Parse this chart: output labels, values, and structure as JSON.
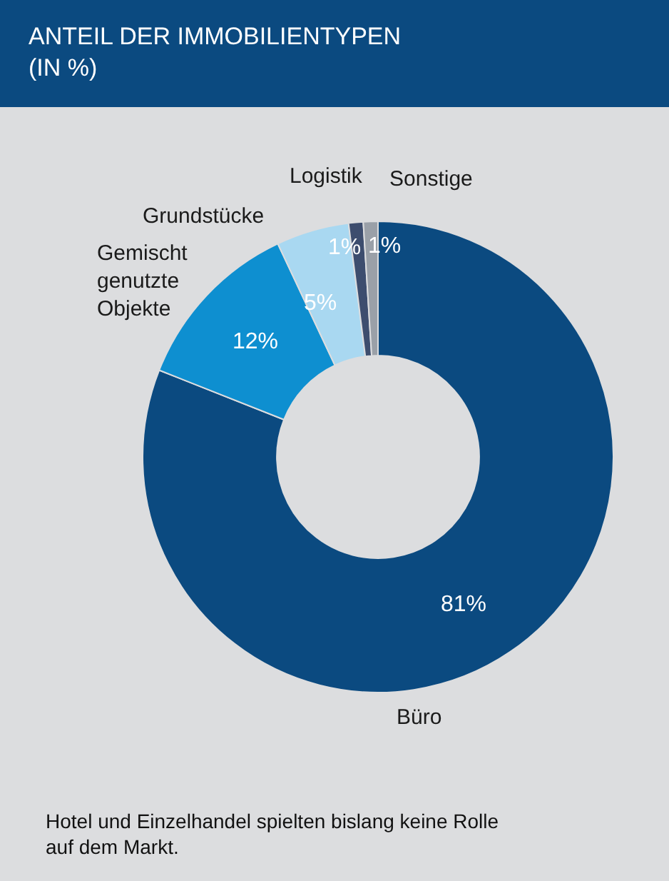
{
  "chart_data": {
    "type": "donut",
    "title": "ANTEIL DER IMMOBILIENTYPEN\n(IN %)",
    "categories": [
      "Büro",
      "Gemischt\ngenutzte\nObjekte",
      "Grundstücke",
      "Logistik",
      "Sonstige"
    ],
    "values": [
      81,
      12,
      5,
      1,
      1
    ],
    "value_labels": [
      "81%",
      "12%",
      "5%",
      "1%",
      "1%"
    ],
    "colors": [
      "#0b4a80",
      "#0e8fd0",
      "#a9d8f1",
      "#3d4d6e",
      "#9aa0a8"
    ],
    "annotations": [
      "Hotel und Einzelhandel spielten bislang keine Rolle\nauf dem Markt."
    ]
  }
}
